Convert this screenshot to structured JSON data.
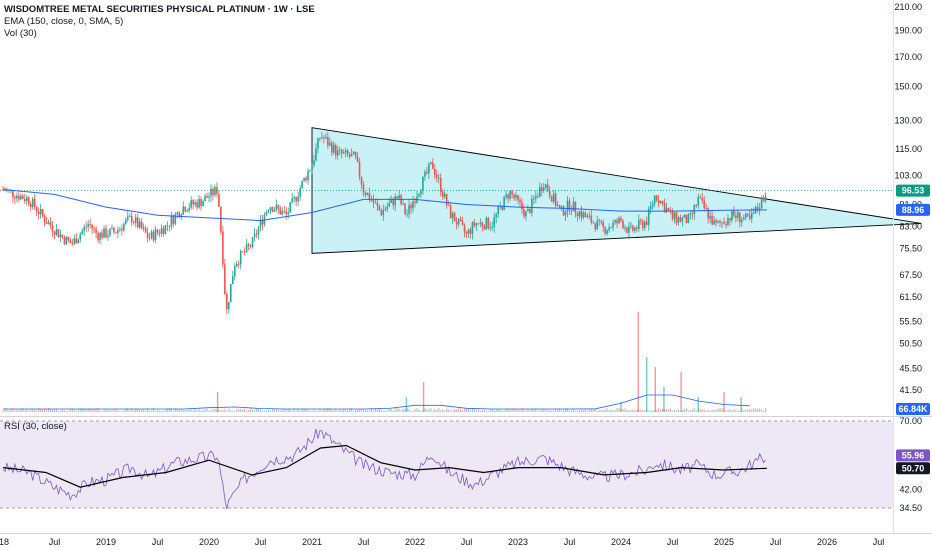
{
  "header": {
    "title": "WISDOMTREE METAL SECURITIES PHYSICAL PLATINUM · 1W · LSE",
    "indicator_ema": "EMA (150, close, 0, SMA, 5)",
    "indicator_vol": "Vol (30)"
  },
  "rsi_panel": {
    "label": "RSI (30, close)"
  },
  "colors": {
    "up": "#26a69a",
    "down": "#ef5350",
    "ema": "#2962ff",
    "triangle_fill": "#b2ebf2",
    "rsi_line": "#7e57c2",
    "rsi_ma": "#000000",
    "rsi_band": "#ede7f6",
    "last_price": "#089981",
    "volume_ma": "#2962ff"
  },
  "chart_data": {
    "type": "candlestick",
    "title": "WISDOMTREE METAL SECURITIES PHYSICAL PLATINUM · 1W · LSE",
    "price_axis": {
      "scale": "log",
      "ticks": [
        "210.00",
        "190.00",
        "170.00",
        "150.00",
        "130.00",
        "115.00",
        "103.00",
        "91.00",
        "83.00",
        "75.50",
        "67.50",
        "61.50",
        "55.50",
        "50.50",
        "45.50",
        "41.50"
      ]
    },
    "time_axis": {
      "ticks": [
        "18",
        "Jul",
        "2019",
        "Jul",
        "2020",
        "Jul",
        "2021",
        "Jul",
        "2022",
        "Jul",
        "2023",
        "Jul",
        "2024",
        "Jul",
        "2025",
        "Jul",
        "2026",
        "Jul"
      ]
    },
    "price_path": [
      {
        "date": "2018-01",
        "price": 97
      },
      {
        "date": "2018-04",
        "price": 93
      },
      {
        "date": "2018-06",
        "price": 85
      },
      {
        "date": "2018-08",
        "price": 79
      },
      {
        "date": "2018-09",
        "price": 77
      },
      {
        "date": "2018-11",
        "price": 84
      },
      {
        "date": "2018-12",
        "price": 80
      },
      {
        "date": "2019-02",
        "price": 81
      },
      {
        "date": "2019-04",
        "price": 86
      },
      {
        "date": "2019-06",
        "price": 79
      },
      {
        "date": "2019-08",
        "price": 83
      },
      {
        "date": "2019-10",
        "price": 90
      },
      {
        "date": "2019-12",
        "price": 92
      },
      {
        "date": "2020-02",
        "price": 97
      },
      {
        "date": "2020-03",
        "price": 57
      },
      {
        "date": "2020-04",
        "price": 71
      },
      {
        "date": "2020-06",
        "price": 77
      },
      {
        "date": "2020-08",
        "price": 91
      },
      {
        "date": "2020-10",
        "price": 87
      },
      {
        "date": "2020-11",
        "price": 93
      },
      {
        "date": "2021-01",
        "price": 108
      },
      {
        "date": "2021-02",
        "price": 122
      },
      {
        "date": "2021-04",
        "price": 113
      },
      {
        "date": "2021-06",
        "price": 111
      },
      {
        "date": "2021-07",
        "price": 97
      },
      {
        "date": "2021-09",
        "price": 88
      },
      {
        "date": "2021-11",
        "price": 94
      },
      {
        "date": "2021-12",
        "price": 87
      },
      {
        "date": "2022-03",
        "price": 108
      },
      {
        "date": "2022-05",
        "price": 88
      },
      {
        "date": "2022-07",
        "price": 80
      },
      {
        "date": "2022-08",
        "price": 84
      },
      {
        "date": "2022-10",
        "price": 84
      },
      {
        "date": "2022-12",
        "price": 96
      },
      {
        "date": "2023-02",
        "price": 87
      },
      {
        "date": "2023-04",
        "price": 100
      },
      {
        "date": "2023-06",
        "price": 88
      },
      {
        "date": "2023-07",
        "price": 91
      },
      {
        "date": "2023-09",
        "price": 86
      },
      {
        "date": "2023-11",
        "price": 82
      },
      {
        "date": "2024-01",
        "price": 85
      },
      {
        "date": "2024-02",
        "price": 81
      },
      {
        "date": "2024-04",
        "price": 85
      },
      {
        "date": "2024-05",
        "price": 95
      },
      {
        "date": "2024-07",
        "price": 86
      },
      {
        "date": "2024-09",
        "price": 85
      },
      {
        "date": "2024-10",
        "price": 93
      },
      {
        "date": "2024-12",
        "price": 83
      },
      {
        "date": "2025-02",
        "price": 87
      },
      {
        "date": "2025-04",
        "price": 85
      },
      {
        "date": "2025-05",
        "price": 90
      },
      {
        "date": "2025-06",
        "price": 96.53
      }
    ],
    "ema_path": [
      {
        "date": "2018-01",
        "value": 97
      },
      {
        "date": "2018-07",
        "value": 95
      },
      {
        "date": "2019-01",
        "value": 90
      },
      {
        "date": "2019-07",
        "value": 87
      },
      {
        "date": "2020-01",
        "value": 86
      },
      {
        "date": "2020-07",
        "value": 85
      },
      {
        "date": "2021-01",
        "value": 88
      },
      {
        "date": "2021-07",
        "value": 93
      },
      {
        "date": "2022-01",
        "value": 93
      },
      {
        "date": "2022-07",
        "value": 91
      },
      {
        "date": "2023-01",
        "value": 90
      },
      {
        "date": "2023-07",
        "value": 89.5
      },
      {
        "date": "2024-01",
        "value": 88.5
      },
      {
        "date": "2024-07",
        "value": 88.5
      },
      {
        "date": "2025-01",
        "value": 88.8
      },
      {
        "date": "2025-06",
        "value": 88.96
      }
    ],
    "triangle": [
      {
        "date": "2021-01",
        "price": 126
      },
      {
        "date": "2026-12",
        "price": 84
      },
      {
        "date": "2021-01",
        "price": 74
      }
    ],
    "volume_spikes": [
      {
        "date": "2020-02",
        "relative": 0.2
      },
      {
        "date": "2021-12",
        "relative": 0.15
      },
      {
        "date": "2022-02",
        "relative": 0.3
      },
      {
        "date": "2024-01",
        "relative": 0.1
      },
      {
        "date": "2024-03",
        "relative": 1.0
      },
      {
        "date": "2024-04",
        "relative": 0.55
      },
      {
        "date": "2024-05",
        "relative": 0.45
      },
      {
        "date": "2024-06",
        "relative": 0.25
      },
      {
        "date": "2024-08",
        "relative": 0.4
      },
      {
        "date": "2024-10",
        "relative": 0.15
      },
      {
        "date": "2025-01",
        "relative": 0.2
      },
      {
        "date": "2025-03",
        "relative": 0.15
      }
    ],
    "rsi_axis": {
      "ticks": [
        "70.00",
        "42.00",
        "34.50"
      ]
    },
    "rsi_path": [
      {
        "date": "2018-01",
        "value": 51
      },
      {
        "date": "2018-04",
        "value": 49
      },
      {
        "date": "2018-07",
        "value": 43
      },
      {
        "date": "2018-09",
        "value": 40
      },
      {
        "date": "2018-11",
        "value": 45
      },
      {
        "date": "2019-01",
        "value": 46
      },
      {
        "date": "2019-04",
        "value": 51
      },
      {
        "date": "2019-06",
        "value": 47
      },
      {
        "date": "2019-09",
        "value": 53
      },
      {
        "date": "2019-12",
        "value": 55
      },
      {
        "date": "2020-02",
        "value": 56
      },
      {
        "date": "2020-03",
        "value": 35
      },
      {
        "date": "2020-05",
        "value": 46
      },
      {
        "date": "2020-08",
        "value": 54
      },
      {
        "date": "2020-11",
        "value": 56
      },
      {
        "date": "2021-02",
        "value": 66
      },
      {
        "date": "2021-04",
        "value": 60
      },
      {
        "date": "2021-07",
        "value": 52
      },
      {
        "date": "2021-10",
        "value": 49
      },
      {
        "date": "2022-01",
        "value": 48
      },
      {
        "date": "2022-03",
        "value": 57
      },
      {
        "date": "2022-05",
        "value": 49
      },
      {
        "date": "2022-08",
        "value": 44
      },
      {
        "date": "2022-11",
        "value": 50
      },
      {
        "date": "2023-01",
        "value": 53
      },
      {
        "date": "2023-04",
        "value": 55
      },
      {
        "date": "2023-07",
        "value": 50
      },
      {
        "date": "2023-10",
        "value": 47
      },
      {
        "date": "2024-01",
        "value": 48
      },
      {
        "date": "2024-04",
        "value": 50
      },
      {
        "date": "2024-05",
        "value": 53
      },
      {
        "date": "2024-08",
        "value": 50
      },
      {
        "date": "2024-10",
        "value": 52
      },
      {
        "date": "2024-12",
        "value": 48
      },
      {
        "date": "2025-03",
        "value": 50
      },
      {
        "date": "2025-06",
        "value": 55.96
      }
    ],
    "rsi_ma_path": [
      {
        "date": "2018-01",
        "value": 51
      },
      {
        "date": "2018-06",
        "value": 49
      },
      {
        "date": "2018-10",
        "value": 43
      },
      {
        "date": "2019-03",
        "value": 47
      },
      {
        "date": "2019-08",
        "value": 49
      },
      {
        "date": "2020-01",
        "value": 54
      },
      {
        "date": "2020-06",
        "value": 48
      },
      {
        "date": "2020-10",
        "value": 51
      },
      {
        "date": "2021-02",
        "value": 59
      },
      {
        "date": "2021-05",
        "value": 60
      },
      {
        "date": "2021-09",
        "value": 53
      },
      {
        "date": "2022-01",
        "value": 50
      },
      {
        "date": "2022-05",
        "value": 51
      },
      {
        "date": "2022-09",
        "value": 49
      },
      {
        "date": "2023-01",
        "value": 51
      },
      {
        "date": "2023-06",
        "value": 51
      },
      {
        "date": "2023-11",
        "value": 48
      },
      {
        "date": "2024-04",
        "value": 49
      },
      {
        "date": "2024-08",
        "value": 51
      },
      {
        "date": "2025-01",
        "value": 50
      },
      {
        "date": "2025-06",
        "value": 50.7
      }
    ],
    "labels": {
      "last_price": "96.53",
      "ema_value": "88.96",
      "volume_value": "66.84K",
      "rsi_value": "55.96",
      "rsi_ma_value": "50.70"
    }
  }
}
